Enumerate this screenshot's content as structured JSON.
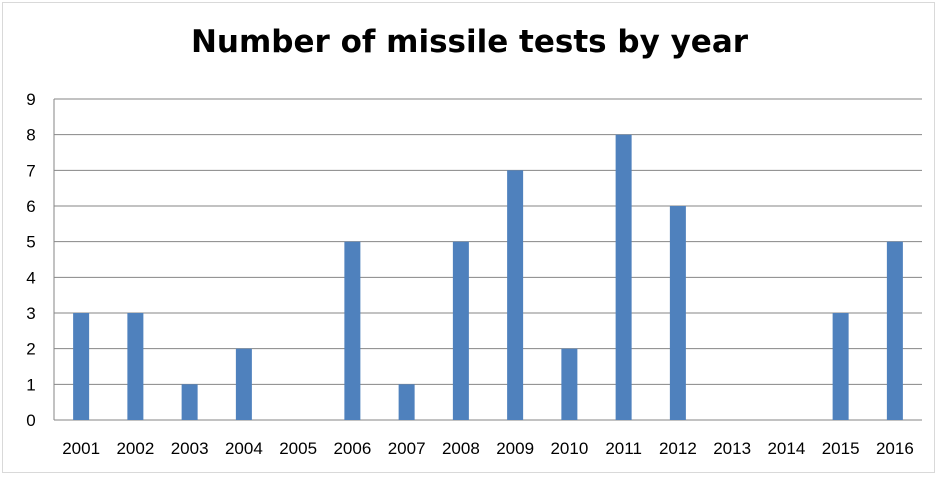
{
  "chart_data": {
    "type": "bar",
    "title": "Number of missile tests by year",
    "xlabel": "",
    "ylabel": "",
    "categories": [
      "2001",
      "2002",
      "2003",
      "2004",
      "2005",
      "2006",
      "2007",
      "2008",
      "2009",
      "2010",
      "2011",
      "2012",
      "2013",
      "2014",
      "2015",
      "2016"
    ],
    "values": [
      3,
      3,
      1,
      2,
      0,
      5,
      1,
      5,
      7,
      2,
      8,
      6,
      0,
      0,
      3,
      5
    ],
    "ylim": [
      0,
      9
    ],
    "yticks": [
      "0",
      "1",
      "2",
      "3",
      "4",
      "5",
      "6",
      "7",
      "8",
      "9"
    ],
    "grid": true,
    "legend": "none",
    "colors": {
      "bar": "#4f81bd",
      "grid": "#868686",
      "axis": "#868686"
    }
  }
}
